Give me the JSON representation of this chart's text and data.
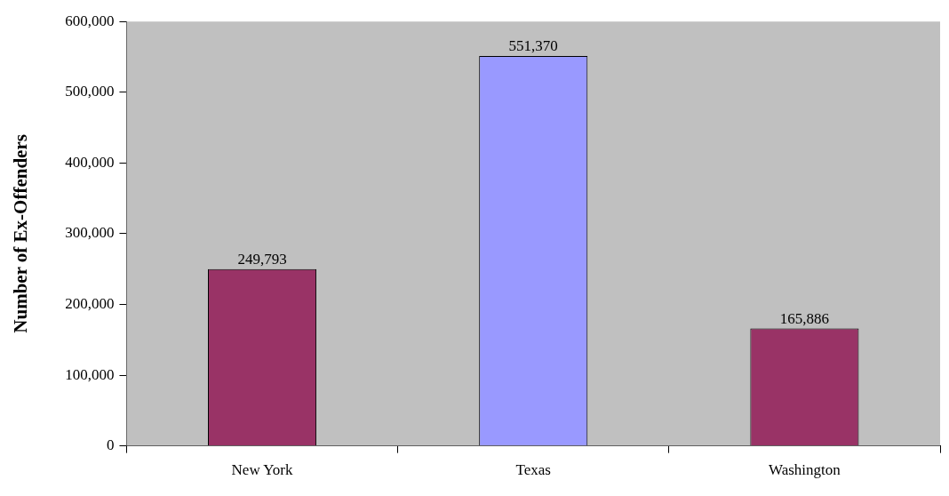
{
  "chart_data": {
    "type": "bar",
    "ylabel": "Number of Ex-Offenders",
    "categories": [
      "New York",
      "Texas",
      "Washington"
    ],
    "values": [
      249793,
      551370,
      165886
    ],
    "colors": [
      "#993366",
      "#9999ff",
      "#993366"
    ],
    "value_labels": [
      "249,793",
      "551,370",
      "165,886"
    ],
    "ylim": [
      0,
      600000
    ],
    "yticks": [
      {
        "value": 0,
        "label": "0"
      },
      {
        "value": 100000,
        "label": "100,000"
      },
      {
        "value": 200000,
        "label": "200,000"
      },
      {
        "value": 300000,
        "label": "300,000"
      },
      {
        "value": 400000,
        "label": "400,000"
      },
      {
        "value": 500000,
        "label": "500,000"
      },
      {
        "value": 600000,
        "label": "600,000"
      }
    ],
    "grid": false,
    "legend": false
  }
}
